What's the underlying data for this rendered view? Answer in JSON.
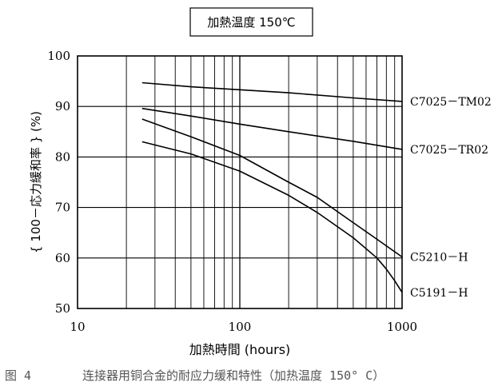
{
  "figure": {
    "number": "图 4",
    "caption": "连接器用铜合金的耐应力缓和特性（加热温度 150° C）"
  },
  "chart_data": {
    "type": "line",
    "title": "加熱温度 150℃",
    "xlabel": "加熱時間 (hours)",
    "ylabel": "{ 100－応力緩和率 } (%)",
    "xscale": "log",
    "xlim": [
      10,
      1000
    ],
    "ylim": [
      50,
      100
    ],
    "xticks": [
      10,
      100,
      1000
    ],
    "xtick_labels": [
      "10",
      "100",
      "1000"
    ],
    "yticks": [
      50,
      60,
      70,
      80,
      90,
      100
    ],
    "ytick_labels": [
      "50",
      "60",
      "70",
      "80",
      "90",
      "100"
    ],
    "grid": true,
    "series": [
      {
        "name": "C7025－TM02",
        "x": [
          25,
          50,
          100,
          200,
          500,
          1000
        ],
        "y": [
          94.7,
          93.9,
          93.3,
          92.7,
          91.7,
          91.0
        ]
      },
      {
        "name": "C7025－TR02",
        "x": [
          25,
          50,
          100,
          200,
          500,
          1000
        ],
        "y": [
          89.6,
          88.1,
          86.5,
          85.0,
          83.1,
          81.5
        ]
      },
      {
        "name": "C5210－H",
        "x": [
          25,
          50,
          100,
          200,
          300,
          500,
          700,
          1000
        ],
        "y": [
          87.5,
          84.0,
          80.3,
          75.0,
          72.0,
          67.0,
          63.7,
          60.2
        ]
      },
      {
        "name": "C5191－H",
        "x": [
          25,
          50,
          100,
          200,
          300,
          500,
          700,
          800,
          900,
          1000
        ],
        "y": [
          83.0,
          80.6,
          77.2,
          72.4,
          69.0,
          64.0,
          60.0,
          57.8,
          55.5,
          53.2
        ]
      }
    ]
  }
}
